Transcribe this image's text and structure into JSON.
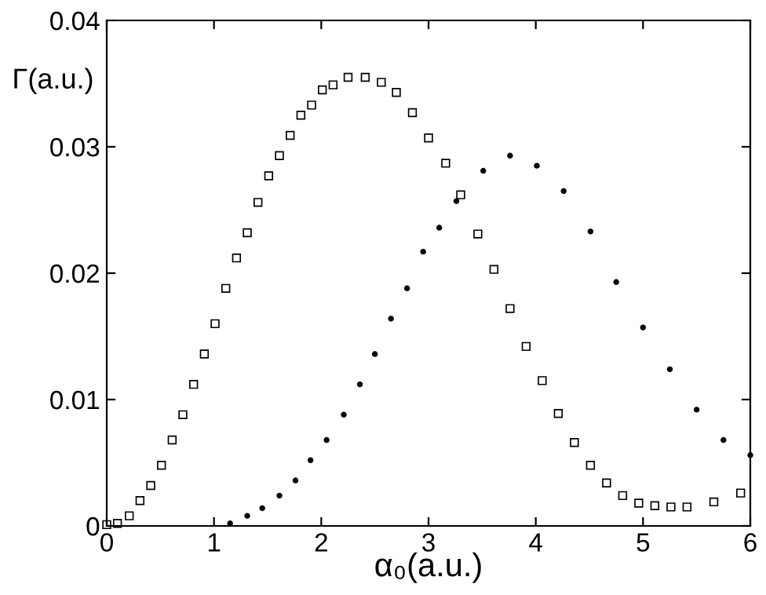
{
  "chart_data": {
    "type": "scatter",
    "xlabel": "α₀(a.u.)",
    "ylabel": "Γ(a.u.)",
    "xlim": [
      0,
      6
    ],
    "ylim": [
      0,
      0.04
    ],
    "xticks": [
      0,
      1,
      2,
      3,
      4,
      5,
      6
    ],
    "yticks": [
      0,
      0.01,
      0.02,
      0.03,
      0.04
    ],
    "grid": false,
    "legend": false,
    "series": [
      {
        "color": "#000000",
        "marker": "square",
        "x": [
          0.0,
          0.1,
          0.21,
          0.31,
          0.41,
          0.51,
          0.61,
          0.71,
          0.81,
          0.91,
          1.01,
          1.11,
          1.21,
          1.31,
          1.41,
          1.51,
          1.61,
          1.71,
          1.81,
          1.91,
          2.01,
          2.11,
          2.25,
          2.41,
          2.56,
          2.7,
          2.85,
          3.0,
          3.16,
          3.3,
          3.46,
          3.61,
          3.76,
          3.91,
          4.06,
          4.21,
          4.36,
          4.51,
          4.66,
          4.81,
          4.96,
          5.11,
          5.26,
          5.41,
          5.66,
          5.91
        ],
        "values": [
          0.0001,
          0.0002,
          0.0008,
          0.002,
          0.0032,
          0.0048,
          0.0068,
          0.0088,
          0.0112,
          0.0136,
          0.016,
          0.0188,
          0.0212,
          0.0232,
          0.0256,
          0.0277,
          0.0293,
          0.0309,
          0.0325,
          0.0333,
          0.0345,
          0.0349,
          0.0355,
          0.0355,
          0.0351,
          0.0343,
          0.0327,
          0.0307,
          0.0287,
          0.0262,
          0.0231,
          0.0203,
          0.0172,
          0.0142,
          0.0115,
          0.0089,
          0.0066,
          0.0048,
          0.0034,
          0.0024,
          0.0018,
          0.0016,
          0.0015,
          0.0015,
          0.0019,
          0.0026
        ]
      },
      {
        "color": "#000000",
        "marker": "circle",
        "x": [
          1.15,
          1.31,
          1.45,
          1.61,
          1.76,
          1.9,
          2.05,
          2.21,
          2.36,
          2.5,
          2.65,
          2.8,
          2.95,
          3.1,
          3.26,
          3.51,
          3.76,
          4.01,
          4.26,
          4.51,
          4.75,
          5.0,
          5.25,
          5.5,
          5.75,
          6.0
        ],
        "values": [
          0.0002,
          0.0008,
          0.0014,
          0.0024,
          0.0036,
          0.0052,
          0.0068,
          0.0088,
          0.0112,
          0.0136,
          0.0164,
          0.0188,
          0.0217,
          0.0236,
          0.0257,
          0.0281,
          0.0293,
          0.0285,
          0.0265,
          0.0233,
          0.0193,
          0.0157,
          0.0124,
          0.0092,
          0.0068,
          0.0056
        ]
      }
    ]
  }
}
